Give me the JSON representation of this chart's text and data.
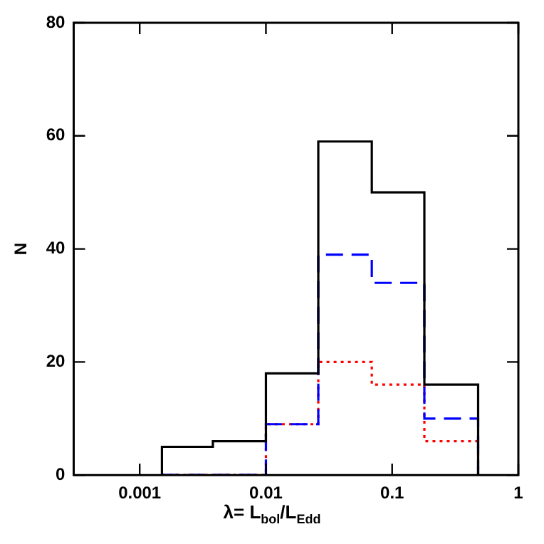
{
  "chart_data": {
    "type": "histogram",
    "xlabel": "λ= L$_{bol}$/L$_{Edd}$",
    "ylabel": "N",
    "bins": [
      0.0015,
      0.0038,
      0.01,
      0.026,
      0.069,
      0.18,
      0.48
    ],
    "series": [
      {
        "color": "#000000",
        "line_style": "solid",
        "values": [
          5,
          6,
          18,
          59,
          50,
          16
        ]
      },
      {
        "color": "#0000ff",
        "line_style": "dashed",
        "values": [
          0,
          0,
          9,
          39,
          34,
          10
        ]
      },
      {
        "color": "#ff0000",
        "line_style": "dotted",
        "values": [
          0,
          0,
          9,
          20,
          16,
          6
        ]
      }
    ],
    "log": "x",
    "xlim": [
      0.0003,
      1
    ],
    "xticks": [
      0.001,
      0.01,
      0.1,
      1
    ],
    "ylim": [
      0,
      80
    ],
    "yticks": [
      0,
      20,
      40,
      60,
      80
    ],
    "grid": false,
    "legend": false
  }
}
